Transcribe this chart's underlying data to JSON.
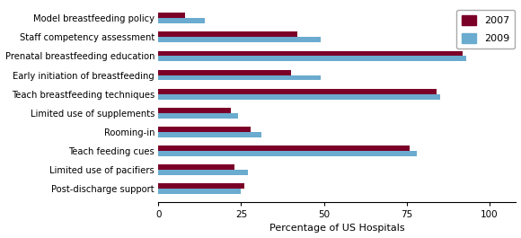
{
  "categories": [
    "Model breastfeeding policy",
    "Staff competency assessment",
    "Prenatal breastfeeding education",
    "Early initiation of breastfeeding",
    "Teach breastfeeding techniques",
    "Limited use of supplements",
    "Rooming-in",
    "Teach feeding cues",
    "Limited use of pacifiers",
    "Post-discharge support"
  ],
  "values_2007": [
    8,
    42,
    92,
    40,
    84,
    22,
    28,
    76,
    23,
    26
  ],
  "values_2009": [
    14,
    49,
    93,
    49,
    85,
    24,
    31,
    78,
    27,
    25
  ],
  "color_2007": "#7b0028",
  "color_2009": "#6aabcf",
  "xlabel": "Percentage of US Hospitals",
  "xlim": [
    0,
    108
  ],
  "xticks": [
    0,
    25,
    50,
    75,
    100
  ],
  "bar_height": 0.28,
  "legend_labels": [
    "2007",
    "2009"
  ],
  "background_color": "#ffffff"
}
